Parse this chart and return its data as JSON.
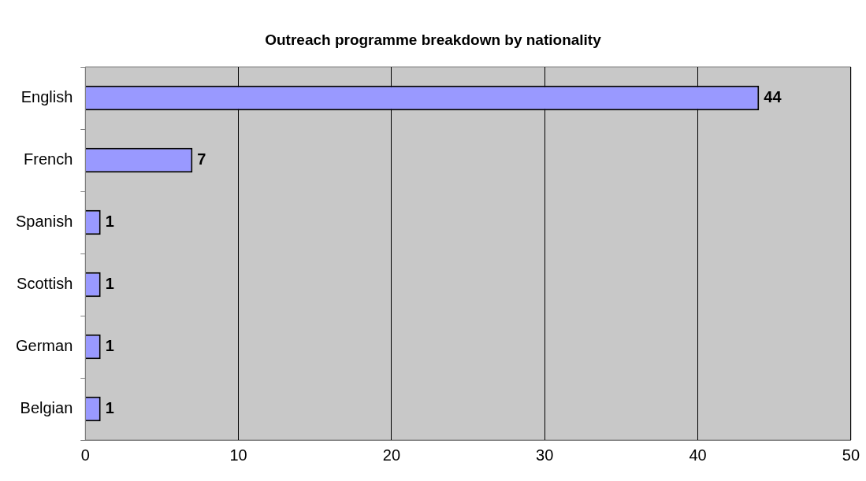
{
  "chart_data": {
    "type": "bar",
    "orientation": "horizontal",
    "title": "Outreach programme breakdown by nationality",
    "categories": [
      "English",
      "French",
      "Spanish",
      "Scottish",
      "German",
      "Belgian"
    ],
    "values": [
      44,
      7,
      1,
      1,
      1,
      1
    ],
    "color": "#9999ff",
    "xlim": [
      0,
      50
    ],
    "xticks": [
      0,
      10,
      20,
      30,
      40,
      50
    ],
    "grid": "x",
    "legend": false,
    "data_labels": true
  }
}
